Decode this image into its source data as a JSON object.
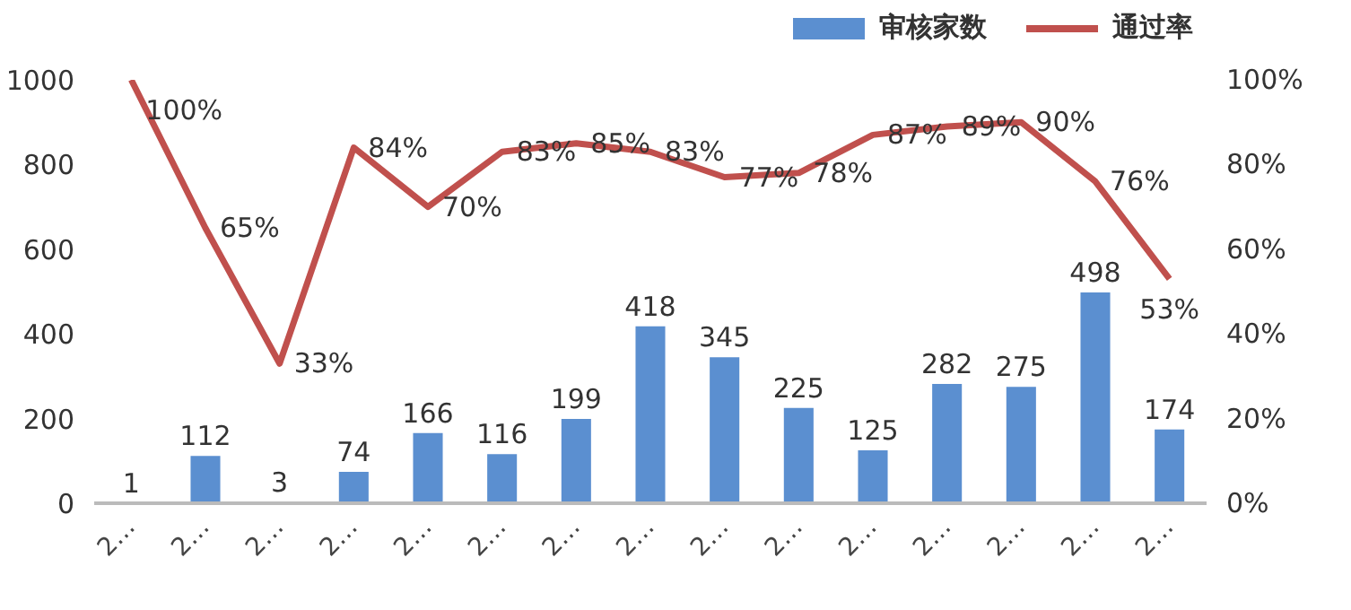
{
  "chart_data": {
    "type": "bar",
    "categories": [
      "2…",
      "2…",
      "2…",
      "2…",
      "2…",
      "2…",
      "2…",
      "2…",
      "2…",
      "2…",
      "2…",
      "2…",
      "2…",
      "2…",
      "2…"
    ],
    "series": [
      {
        "name": "审核家数",
        "color": "#5b8fd0",
        "values": [
          1,
          112,
          3,
          74,
          166,
          116,
          199,
          418,
          345,
          225,
          125,
          282,
          275,
          498,
          174
        ],
        "value_labels": [
          "1",
          "112",
          "3",
          "74",
          "166",
          "116",
          "199",
          "418",
          "345",
          "225",
          "125",
          "282",
          "275",
          "498",
          "174"
        ]
      },
      {
        "name": "通过率",
        "type": "line",
        "axis": "y2",
        "color": "#c0504d",
        "values": [
          100,
          65,
          33,
          84,
          70,
          83,
          85,
          83,
          77,
          78,
          87,
          89,
          90,
          76,
          53
        ],
        "value_labels": [
          "100%",
          "65%",
          "33%",
          "84%",
          "70%",
          "83%",
          "85%",
          "83%",
          "77%",
          "78%",
          "87%",
          "89%",
          "90%",
          "76%",
          "53%"
        ]
      }
    ],
    "ylim": [
      0,
      1000
    ],
    "yticks": [
      0,
      200,
      400,
      600,
      800,
      1000
    ],
    "y2lim": [
      0,
      100
    ],
    "y2ticks": [
      {
        "value": 0,
        "label": "0%"
      },
      {
        "value": 20,
        "label": "20%"
      },
      {
        "value": 40,
        "label": "40%"
      },
      {
        "value": 60,
        "label": "60%"
      },
      {
        "value": 80,
        "label": "80%"
      },
      {
        "value": 100,
        "label": "100%"
      }
    ],
    "legend": "top right",
    "grid": false
  }
}
